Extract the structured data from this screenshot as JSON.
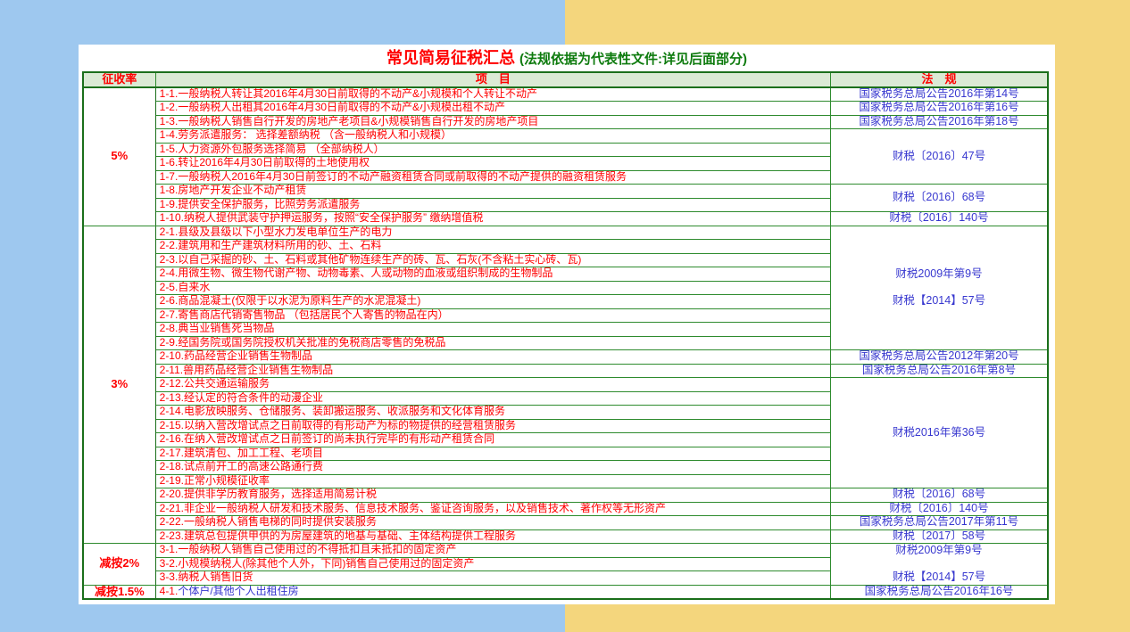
{
  "colors": {
    "background_left": "#9ec8ef",
    "background_right": "#f4d67d",
    "panel": "#ffffff",
    "table_border": "#1b6f1b",
    "header_bg": "#dbead5",
    "accent_red": "#ff0000",
    "title_green": "#0e7b0e",
    "regulation_blue": "#3737cf"
  },
  "title": {
    "main": "常见简易征税汇总",
    "sub": "(法规依据为代表性文件:详见后面部分)"
  },
  "table": {
    "headers": {
      "rate": "征收率",
      "item": "项　目",
      "regulation": "法　规"
    },
    "groups": [
      {
        "rate": "5%",
        "items": [
          {
            "no": "1-1.",
            "text": "一般纳税人转让其2016年4月30日前取得的不动产&小规模和个人转让不动产"
          },
          {
            "no": "1-2.",
            "text": "一般纳税人出租其2016年4月30日前取得的不动产&小规模出租不动产"
          },
          {
            "no": "1-3.",
            "text": "一般纳税人销售自行开发的房地产老项目&小规模销售自行开发的房地产项目"
          },
          {
            "no": "1-4.",
            "text": "劳务派遣服务： 选择差额纳税 （含一般纳税人和小规模）"
          },
          {
            "no": "1-5.",
            "text": "人力资源外包服务选择简易 （全部纳税人）"
          },
          {
            "no": "1-6.",
            "text": "转让2016年4月30日前取得的土地使用权"
          },
          {
            "no": "1-7.",
            "text": "一般纳税人2016年4月30日前签订的不动产融资租赁合同或前取得的不动产提供的融资租赁服务"
          },
          {
            "no": "1-8.",
            "text": "房地产开发企业不动产租赁"
          },
          {
            "no": "1-9.",
            "text": "提供安全保护服务，比照劳务派遣服务"
          },
          {
            "no": "1-10.",
            "text": "纳税人提供武装守护押运服务，按照“安全保护服务” 缴纳增值税"
          }
        ],
        "regs": [
          {
            "span": 1,
            "lines": [
              "国家税务总局公告2016年第14号"
            ]
          },
          {
            "span": 1,
            "lines": [
              "国家税务总局公告2016年第16号"
            ]
          },
          {
            "span": 1,
            "lines": [
              "国家税务总局公告2016年第18号"
            ]
          },
          {
            "span": 4,
            "lines": [
              "财税〔2016〕47号"
            ]
          },
          {
            "span": 2,
            "lines": [
              "财税〔2016〕68号"
            ]
          },
          {
            "span": 1,
            "lines": [
              "财税〔2016〕140号"
            ]
          }
        ]
      },
      {
        "rate": "3%",
        "items": [
          {
            "no": "2-1.",
            "text": "县级及县级以下小型水力发电单位生产的电力"
          },
          {
            "no": "2-2.",
            "text": "建筑用和生产建筑材料所用的砂、土、石料"
          },
          {
            "no": "2-3.",
            "text": "以自己采掘的砂、土、石料或其他矿物连续生产的砖、瓦、石灰(不含粘土实心砖、瓦)"
          },
          {
            "no": "2-4.",
            "text": "用微生物、微生物代谢产物、动物毒素、人或动物的血液或组织制成的生物制品"
          },
          {
            "no": "2-5.",
            "text": "自来水"
          },
          {
            "no": "2-6.",
            "text": "商品混凝土(仅限于以水泥为原料生产的水泥混凝土)"
          },
          {
            "no": "2-7.",
            "text": "寄售商店代销寄售物品 （包括居民个人寄售的物品在内）"
          },
          {
            "no": "2-8.",
            "text": "典当业销售死当物品"
          },
          {
            "no": "2-9.",
            "text": "经国务院或国务院授权机关批准的免税商店零售的免税品"
          },
          {
            "no": "2-10.",
            "text": "药品经营企业销售生物制品"
          },
          {
            "no": "2-11.",
            "text": "兽用药品经营企业销售生物制品"
          },
          {
            "no": "2-12.",
            "text": "公共交通运输服务"
          },
          {
            "no": "2-13.",
            "text": "经认定的符合条件的动漫企业"
          },
          {
            "no": "2-14.",
            "text": "电影放映服务、仓储服务、装卸搬运服务、收派服务和文化体育服务"
          },
          {
            "no": "2-15.",
            "text": "以纳入营改增试点之日前取得的有形动产为标的物提供的经营租赁服务"
          },
          {
            "no": "2-16.",
            "text": "在纳入营改增试点之日前签订的尚未执行完毕的有形动产租赁合同"
          },
          {
            "no": "2-17.",
            "text": "建筑清包、加工工程、老项目"
          },
          {
            "no": "2-18.",
            "text": "试点前开工的高速公路通行费"
          },
          {
            "no": "2-19.",
            "text": "正常小规模征收率"
          },
          {
            "no": "2-20.",
            "text": "提供非学历教育服务，选择适用简易计税"
          },
          {
            "no": "2-21.",
            "text": "非企业一般纳税人研发和技术服务、信息技术服务、鉴证咨询服务，以及销售技术、著作权等无形资产"
          },
          {
            "no": "2-22.",
            "text": "一般纳税人销售电梯的同时提供安装服务"
          },
          {
            "no": "2-23.",
            "text": "建筑总包提供甲供的为房屋建筑的地基与基础、主体结构提供工程服务"
          }
        ],
        "regs": [
          {
            "span": 9,
            "lines": [
              "财税2009年第9号",
              "财税【2014】57号"
            ]
          },
          {
            "span": 1,
            "lines": [
              "国家税务总局公告2012年第20号"
            ]
          },
          {
            "span": 1,
            "lines": [
              "国家税务总局公告2016年第8号"
            ]
          },
          {
            "span": 8,
            "lines": [
              "财税2016年第36号"
            ]
          },
          {
            "span": 1,
            "lines": [
              "财税〔2016〕68号"
            ]
          },
          {
            "span": 1,
            "lines": [
              "财税〔2016〕140号"
            ]
          },
          {
            "span": 1,
            "lines": [
              "国家税务总局公告2017年第11号"
            ]
          },
          {
            "span": 1,
            "lines": [
              "财税〔2017〕58号"
            ]
          }
        ]
      },
      {
        "rate": "减按2%",
        "items": [
          {
            "no": "3-1.",
            "text": "一般纳税人销售自己使用过的不得抵扣且未抵扣的固定资产"
          },
          {
            "no": "3-2.",
            "text": "小规模纳税人(除其他个人外，下同)销售自己使用过的固定资产"
          },
          {
            "no": "3-3.",
            "text": "纳税人销售旧货"
          }
        ],
        "regs": [
          {
            "span": 3,
            "lines": [
              "财税2009年第9号",
              "财税【2014】57号"
            ]
          }
        ]
      },
      {
        "rate": "减按1.5%",
        "items": [
          {
            "no": "4-1.",
            "text": "个体户/其他个人出租住房",
            "color": "blue"
          }
        ],
        "regs": [
          {
            "span": 1,
            "lines": [
              "国家税务总局公告2016年16号"
            ]
          }
        ]
      }
    ]
  }
}
